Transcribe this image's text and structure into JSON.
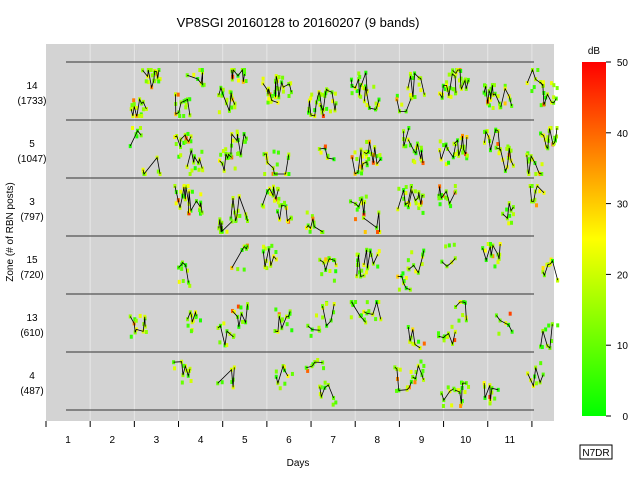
{
  "chart_data": {
    "type": "scatter",
    "title": "VP8SGI 20160128 to 20160207 (9 bands)",
    "xlabel": "Days",
    "ylabel": "Zone (# of RBN posts)",
    "x_ticks": [
      "1",
      "2",
      "3",
      "4",
      "5",
      "6",
      "7",
      "8",
      "9",
      "10",
      "11"
    ],
    "xlim": [
      0.5,
      12
    ],
    "rows": [
      {
        "zone": "14",
        "posts": "(1733)"
      },
      {
        "zone": "5",
        "posts": "(1047)"
      },
      {
        "zone": "3",
        "posts": "(797)"
      },
      {
        "zone": "15",
        "posts": "(720)"
      },
      {
        "zone": "13",
        "posts": "(610)"
      },
      {
        "zone": "4",
        "posts": "(487)"
      }
    ],
    "colorbar": {
      "label": "dB",
      "min": 0,
      "max": 50,
      "ticks": [
        "0",
        "10",
        "20",
        "30",
        "40",
        "50"
      ],
      "colors": [
        "#00ff00",
        "#ffff00",
        "#ff0000"
      ]
    },
    "credit": "N7DR",
    "colors": {
      "panel": "#d3d3d3",
      "gridline": "#e6e6e6",
      "rowline": "#333333"
    }
  }
}
